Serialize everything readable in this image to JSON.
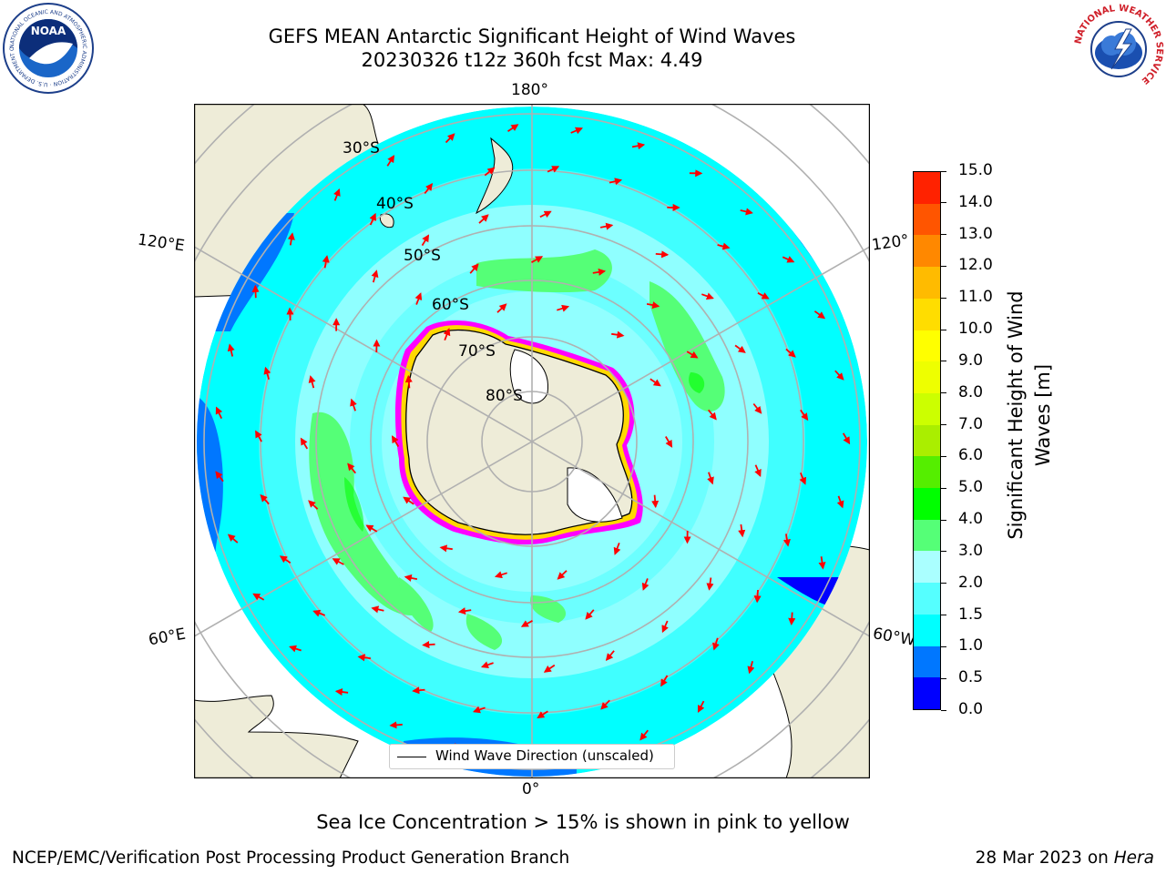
{
  "header": {
    "title_line1": "GEFS MEAN Antarctic Significant Height of Wind Waves",
    "title_line2": "20230326 t12z 360h fcst   Max: 4.49"
  },
  "logos": {
    "left": "NOAA",
    "right_ring_text": "NATIONAL WEATHER SERVICE",
    "left_ring_text": "NATIONAL OCEANIC AND ATMOSPHERIC ADMINISTRATION · U.S. DEPARTMENT OF COMMERCE"
  },
  "map": {
    "lon_labels": {
      "top": "180°",
      "bottom": "0°",
      "upper_left": "120°E",
      "upper_right": "120°",
      "lower_left": "60°E",
      "lower_right": "60°W"
    },
    "lat_labels": [
      "30°S",
      "40°S",
      "50°S",
      "60°S",
      "70°S",
      "80°S"
    ],
    "legend_text": "Wind Wave Direction (unscaled)",
    "colors": {
      "land": "#eeecd8",
      "ice_edge_pink": "#ff00ff",
      "ice_edge_yellow": "#ffd800",
      "arrow": "#ff0000"
    }
  },
  "colorbar": {
    "label": "Significant Height of Wind Waves [m]",
    "ticks": [
      "15.0",
      "14.0",
      "13.0",
      "12.0",
      "11.0",
      "10.0",
      "9.0",
      "8.0",
      "7.0",
      "6.0",
      "5.0",
      "4.0",
      "3.0",
      "2.0",
      "1.5",
      "1.0",
      "0.5",
      "0.0"
    ],
    "colors": [
      "#0000ff",
      "#0077ff",
      "#00ffff",
      "#55ffff",
      "#aaffff",
      "#55ff77",
      "#00ff00",
      "#55ee00",
      "#aaee00",
      "#ccff00",
      "#eeff00",
      "#ffff00",
      "#ffdd00",
      "#ffbb00",
      "#ff8800",
      "#ff5500",
      "#ff2200"
    ]
  },
  "caption": "Sea Ice Concentration > 15% is shown in pink to yellow",
  "footer": {
    "left": "NCEP/EMC/Verification Post Processing Product Generation Branch",
    "right_prefix": "28 Mar 2023 on ",
    "right_machine": "Hera"
  }
}
